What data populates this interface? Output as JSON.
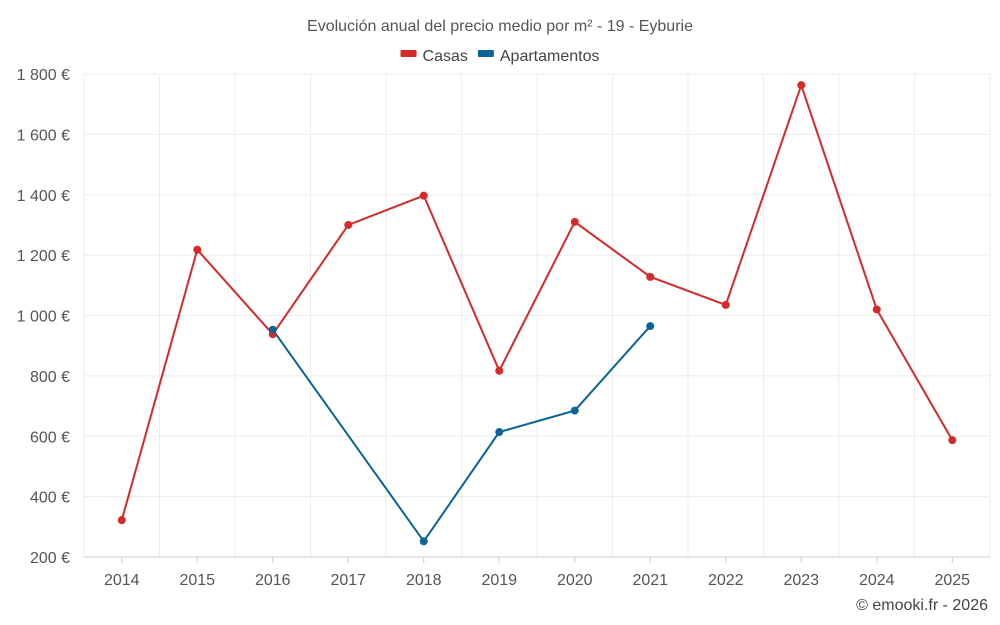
{
  "chart_data": {
    "type": "line",
    "title": "Evolución anual del precio medio por m² - 19 - Eyburie",
    "categories": [
      "2014",
      "2015",
      "2016",
      "2017",
      "2018",
      "2019",
      "2020",
      "2021",
      "2022",
      "2023",
      "2024",
      "2025"
    ],
    "series": [
      {
        "name": "Casas",
        "color": "#d62a2a",
        "values": [
          322,
          1218,
          938,
          1300,
          1397,
          817,
          1310,
          1128,
          1035,
          1763,
          1020,
          587
        ]
      },
      {
        "name": "Apartamentos",
        "color": "#0b6496",
        "values": [
          null,
          null,
          953,
          null,
          252,
          614,
          685,
          965,
          null,
          null,
          null,
          null
        ]
      }
    ],
    "ylim": [
      200,
      1800
    ],
    "yticks": [
      200,
      400,
      600,
      800,
      1000,
      1200,
      1400,
      1600,
      1800
    ],
    "ytick_labels": [
      "200 €",
      "400 €",
      "600 €",
      "800 €",
      "1 000 €",
      "1 200 €",
      "1 400 €",
      "1 600 €",
      "1 800 €"
    ],
    "legend_position": "top-center",
    "grid": true
  },
  "credit": "© emooki.fr - 2026"
}
